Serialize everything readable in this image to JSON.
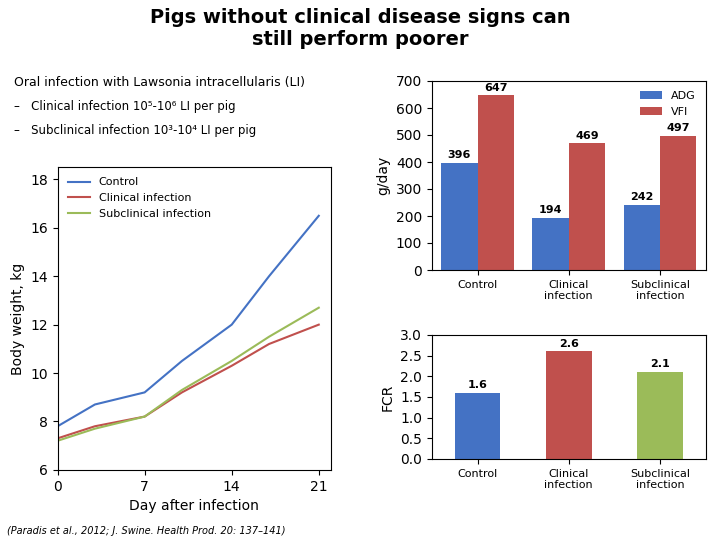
{
  "title": "Pigs without clinical disease signs can\nstill perform poorer",
  "annotations": [
    "Oral infection with Lawsonia intracellularis (LI)",
    "–   Clinical infection 10⁵-10⁶ LI per pig",
    "–   Subclinical infection 10³-10⁴ LI per pig",
    "(Paradis et al., 2012; J. Swine. Health Prod. 20: 137–141)"
  ],
  "chart_data": [
    {
      "type": "line",
      "xlabel": "Day after infection",
      "ylabel": "Body weight, kg",
      "x": [
        0,
        3,
        7,
        10,
        14,
        17,
        21
      ],
      "series": [
        {
          "name": "Control",
          "color": "#4472C4",
          "values": [
            7.8,
            8.7,
            9.2,
            10.5,
            12.0,
            14.0,
            16.5
          ]
        },
        {
          "name": "Clinical infection",
          "color": "#C0504D",
          "values": [
            7.3,
            7.8,
            8.2,
            9.2,
            10.3,
            11.2,
            12.0
          ]
        },
        {
          "name": "Subclinical infection",
          "color": "#9BBB59",
          "values": [
            7.2,
            7.7,
            8.2,
            9.3,
            10.5,
            11.5,
            12.7
          ]
        }
      ],
      "xlim": [
        0,
        22
      ],
      "ylim": [
        6,
        18.5
      ],
      "xticks": [
        0,
        7,
        14,
        21
      ],
      "yticks": [
        6,
        8,
        10,
        12,
        14,
        16,
        18
      ],
      "legend": "upper left"
    },
    {
      "type": "bar",
      "ylabel": "g/day",
      "categories": [
        "Control",
        "Clinical infection",
        "Subclinical infection"
      ],
      "series": [
        {
          "name": "ADG",
          "color": "#4472C4",
          "values": [
            396,
            194,
            242
          ]
        },
        {
          "name": "VFI",
          "color": "#C0504D",
          "values": [
            647,
            469,
            497
          ]
        }
      ],
      "ylim": [
        0,
        700
      ],
      "yticks": [
        0,
        100,
        200,
        300,
        400,
        500,
        600,
        700
      ],
      "legend": "upper right",
      "data_labels": true
    },
    {
      "type": "bar",
      "ylabel": "FCR",
      "categories": [
        "Control",
        "Clinical infection",
        "Subclinical infection"
      ],
      "values": [
        1.6,
        2.6,
        2.1
      ],
      "colors": [
        "#4472C4",
        "#C0504D",
        "#9BBB59"
      ],
      "ylim": [
        0,
        3
      ],
      "yticks": [
        {
          "value": 0,
          "label": "0.0"
        },
        0.5,
        {
          "value": 1,
          "label": "1.0"
        },
        1.5,
        {
          "value": 2,
          "label": "2.0"
        },
        2.5,
        {
          "value": 3,
          "label": "3.0"
        }
      ],
      "data_labels": true
    }
  ]
}
